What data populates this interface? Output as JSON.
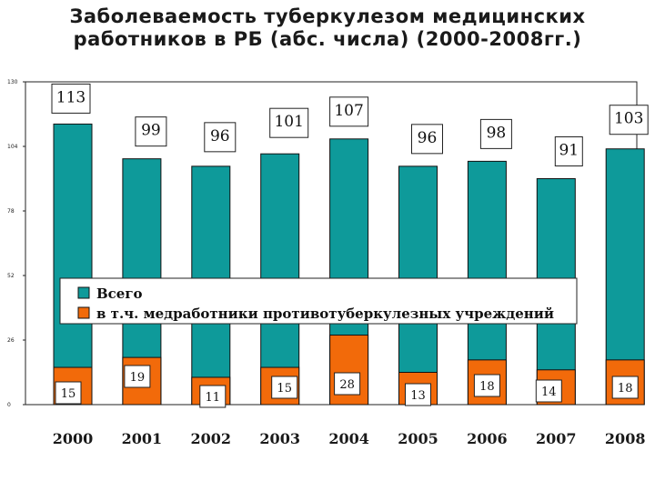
{
  "chart_data": {
    "type": "bar",
    "title": "Заболеваемость туберкулезом медицинских работников в РБ (абс. числа) (2000-2008гг.)",
    "categories": [
      "2000",
      "2001",
      "2002",
      "2003",
      "2004",
      "2005",
      "2006",
      "2007",
      "2008"
    ],
    "series": [
      {
        "name": "Всего",
        "color": "#0e9a9a",
        "values": [
          113,
          99,
          96,
          101,
          107,
          96,
          98,
          91,
          103
        ]
      },
      {
        "name": "в т.ч. медработники противотуберкулезных учреждений",
        "color": "#f26a0a",
        "values": [
          15,
          19,
          11,
          15,
          28,
          13,
          18,
          14,
          18
        ]
      }
    ],
    "yticks": [
      "0",
      "26",
      "52",
      "78",
      "104",
      "130"
    ],
    "ylim": [
      0,
      130
    ],
    "grid": false,
    "legend_position": "middle"
  }
}
